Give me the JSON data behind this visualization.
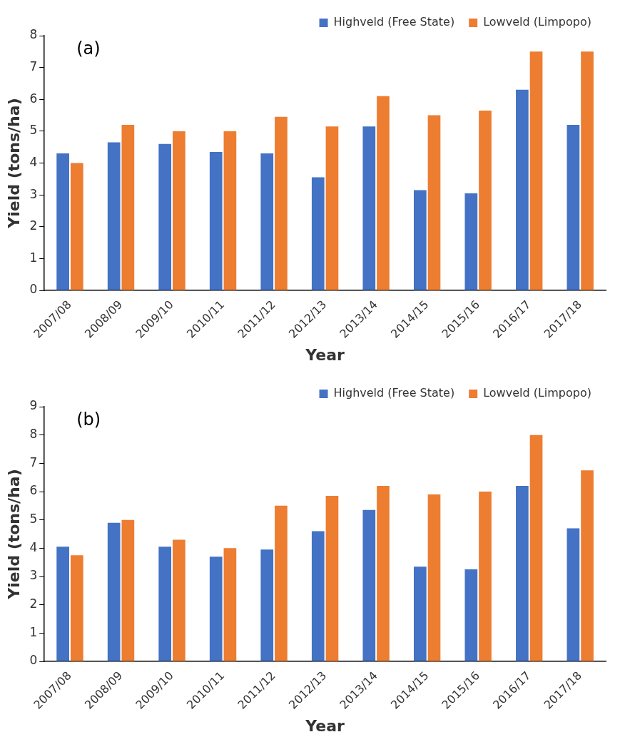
{
  "chart_data": [
    {
      "type": "bar",
      "annotations": [
        "(a)"
      ],
      "xlabel": "Year",
      "ylabel": "Yield (tons/ha)",
      "categories": [
        "2007/08",
        "2008/09",
        "2009/10",
        "2010/11",
        "2011/12",
        "2012/13",
        "2013/14",
        "2014/15",
        "2015/16",
        "2016/17",
        "2017/18"
      ],
      "series": [
        {
          "name": "Highveld (Free State)",
          "color": "#4472c4",
          "values": [
            4.3,
            4.65,
            4.6,
            4.35,
            4.3,
            3.55,
            5.15,
            3.15,
            3.05,
            6.3,
            5.2
          ]
        },
        {
          "name": "Lowveld (Limpopo)",
          "color": "#ed7d31",
          "values": [
            4.0,
            5.2,
            5.0,
            5.0,
            5.45,
            5.15,
            6.1,
            5.5,
            5.65,
            7.5,
            7.5
          ]
        }
      ],
      "ylim": [
        0,
        8
      ],
      "yticks": [
        0,
        1,
        2,
        3,
        4,
        5,
        6,
        7,
        8
      ],
      "legend": "top right"
    },
    {
      "type": "bar",
      "annotations": [
        "(b)"
      ],
      "xlabel": "Year",
      "ylabel": "Yield (tons/ha)",
      "categories": [
        "2007/08",
        "2008/09",
        "2009/10",
        "2010/11",
        "2011/12",
        "2012/13",
        "2013/14",
        "2014/15",
        "2015/16",
        "2016/17",
        "2017/18"
      ],
      "series": [
        {
          "name": "Highveld (Free State)",
          "color": "#4472c4",
          "values": [
            4.05,
            4.9,
            4.05,
            3.7,
            3.95,
            4.6,
            5.35,
            3.35,
            3.25,
            6.2,
            4.7
          ]
        },
        {
          "name": "Lowveld (Limpopo)",
          "color": "#ed7d31",
          "values": [
            3.75,
            5.0,
            4.3,
            4.0,
            5.5,
            5.85,
            6.2,
            5.9,
            6.0,
            8.0,
            6.75
          ]
        }
      ],
      "ylim": [
        0,
        9
      ],
      "yticks": [
        0,
        1,
        2,
        3,
        4,
        5,
        6,
        7,
        8,
        9
      ],
      "legend": "top right"
    }
  ]
}
